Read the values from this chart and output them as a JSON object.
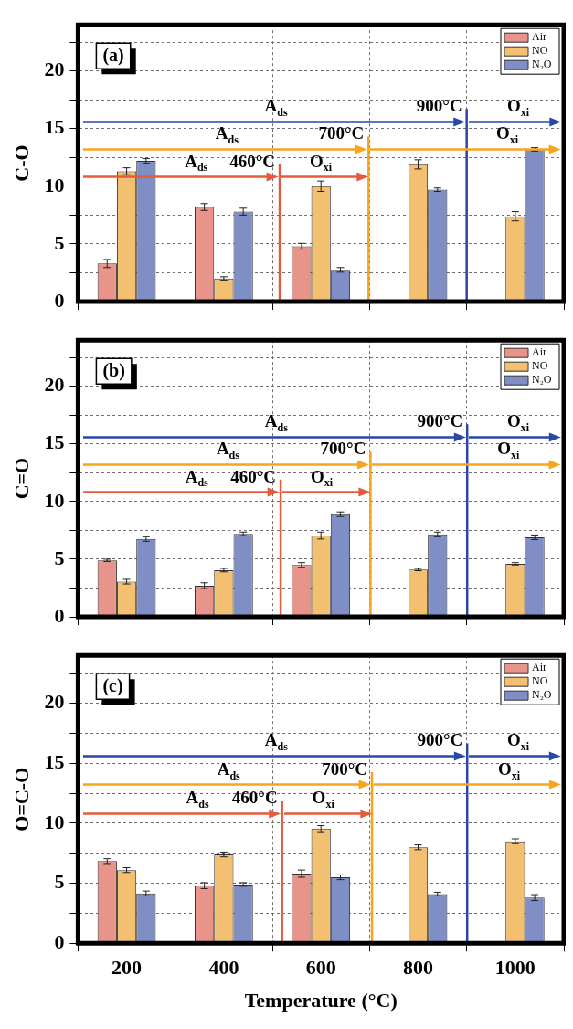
{
  "chart_data": [
    {
      "type": "bar",
      "title": "(a)",
      "ylabel": "C-O",
      "x": [
        200,
        400,
        600,
        800,
        1000
      ],
      "xlim": [
        100,
        1100
      ],
      "xticks": [
        200,
        400,
        600,
        800,
        1000
      ],
      "ylim": [
        0,
        24
      ],
      "yticks": [
        0,
        {
          "value": 2.5,
          "label": null
        },
        5,
        {
          "value": 7.5,
          "label": null
        },
        10,
        {
          "value": 12.5,
          "label": null
        },
        15,
        {
          "value": 17.5,
          "label": null
        },
        20,
        {
          "value": 22.5,
          "label": null
        }
      ],
      "grid": true,
      "legend": "top right",
      "tick_labels": "y",
      "series": [
        {
          "name": "Air",
          "color": "#e8948a",
          "values": [
            3.3,
            8.2,
            4.8,
            null,
            null
          ],
          "errors": [
            0.35,
            0.3,
            0.25,
            null,
            null
          ]
        },
        {
          "name": "NO",
          "color": "#f2c070",
          "values": [
            11.3,
            2.0,
            10.0,
            11.9,
            7.4
          ],
          "errors": [
            0.3,
            0.15,
            0.45,
            0.4,
            0.4
          ]
        },
        {
          "name": "N₂O",
          "color": "#7f8fc6",
          "values": [
            12.2,
            7.8,
            2.75,
            9.7,
            13.2
          ],
          "errors": [
            0.2,
            0.3,
            0.2,
            0.15,
            0.15
          ]
        }
      ],
      "ref_lines": [
        {
          "axis": "x",
          "value": 515,
          "label": "460°C",
          "color": "#e45b3b"
        },
        {
          "axis": "x",
          "value": 698,
          "label": "700°C",
          "color": "#f8a51c"
        },
        {
          "axis": "x",
          "value": 900,
          "label": "900°C",
          "color": "#2a46a8"
        }
      ],
      "annotations": [
        "A$_{ds}$",
        "O$_{xi}$",
        "A$_{ds}$",
        "O$_{xi}$",
        "A$_{ds}$",
        "O$_{xi}$"
      ]
    },
    {
      "type": "bar",
      "title": "(b)",
      "ylabel": "C=O",
      "x": [
        200,
        400,
        600,
        800,
        1000
      ],
      "xlim": [
        100,
        1100
      ],
      "xticks": [
        200,
        400,
        600,
        800,
        1000
      ],
      "ylim": [
        0,
        24
      ],
      "yticks": [
        0,
        {
          "value": 2.5,
          "label": null
        },
        5,
        {
          "value": 7.5,
          "label": null
        },
        10,
        {
          "value": 12.5,
          "label": null
        },
        15,
        {
          "value": 17.5,
          "label": null
        },
        20,
        {
          "value": 22.5,
          "label": null
        }
      ],
      "grid": true,
      "legend": "top right",
      "tick_labels": "y",
      "series": [
        {
          "name": "Air",
          "color": "#e8948a",
          "values": [
            4.9,
            2.7,
            4.5,
            null,
            null
          ],
          "errors": [
            0.1,
            0.25,
            0.2,
            null,
            null
          ]
        },
        {
          "name": "NO",
          "color": "#f2c070",
          "values": [
            3.05,
            4.05,
            7.05,
            4.1,
            4.6
          ],
          "errors": [
            0.2,
            0.15,
            0.3,
            0.1,
            0.1
          ]
        },
        {
          "name": "N₂O",
          "color": "#7f8fc6",
          "values": [
            6.75,
            7.2,
            8.9,
            7.15,
            6.9
          ],
          "errors": [
            0.2,
            0.15,
            0.2,
            0.2,
            0.2
          ]
        }
      ],
      "ref_lines": [
        {
          "axis": "x",
          "value": 517,
          "label": "460°C",
          "color": "#e45b3b"
        },
        {
          "axis": "x",
          "value": 702,
          "label": "700°C",
          "color": "#f8a51c"
        },
        {
          "axis": "x",
          "value": 901,
          "label": "900°C",
          "color": "#2a46a8"
        }
      ],
      "annotations": [
        "A$_{ds}$",
        "O$_{xi}$",
        "A$_{ds}$",
        "O$_{xi}$",
        "A$_{ds}$",
        "O$_{xi}$"
      ]
    },
    {
      "type": "bar",
      "title": "(c)",
      "ylabel": "O=C-O",
      "xlabel": "Temperature (°C)",
      "x": [
        200,
        400,
        600,
        800,
        1000
      ],
      "xlim": [
        100,
        1100
      ],
      "xticks": [
        200,
        400,
        600,
        800,
        1000
      ],
      "ylim": [
        0,
        24
      ],
      "yticks": [
        0,
        {
          "value": 2.5,
          "label": null
        },
        5,
        {
          "value": 7.5,
          "label": null
        },
        10,
        {
          "value": 12.5,
          "label": null
        },
        15,
        {
          "value": 17.5,
          "label": null
        },
        20,
        {
          "value": 22.5,
          "label": null
        }
      ],
      "grid": true,
      "legend": "top right",
      "series": [
        {
          "name": "Air",
          "color": "#e8948a",
          "values": [
            6.85,
            4.8,
            5.8,
            null,
            null
          ],
          "errors": [
            0.2,
            0.25,
            0.3,
            null,
            null
          ]
        },
        {
          "name": "NO",
          "color": "#f2c070",
          "values": [
            6.1,
            7.4,
            9.55,
            8.0,
            8.5
          ],
          "errors": [
            0.2,
            0.2,
            0.25,
            0.2,
            0.2
          ]
        },
        {
          "name": "N₂O",
          "color": "#7f8fc6",
          "values": [
            4.15,
            4.9,
            5.5,
            4.1,
            3.8
          ],
          "errors": [
            0.2,
            0.15,
            0.2,
            0.15,
            0.25
          ]
        }
      ],
      "ref_lines": [
        {
          "axis": "x",
          "value": 520,
          "label": "460°C",
          "color": "#e45b3b"
        },
        {
          "axis": "x",
          "value": 705,
          "label": "700°C",
          "color": "#f8a51c"
        },
        {
          "axis": "x",
          "value": 901,
          "label": "900°C",
          "color": "#2a46a8"
        }
      ],
      "annotations": [
        "A$_{ds}$",
        "O$_{xi}$",
        "A$_{ds}$",
        "O$_{xi}$",
        "A$_{ds}$",
        "O$_{xi}$"
      ]
    }
  ]
}
